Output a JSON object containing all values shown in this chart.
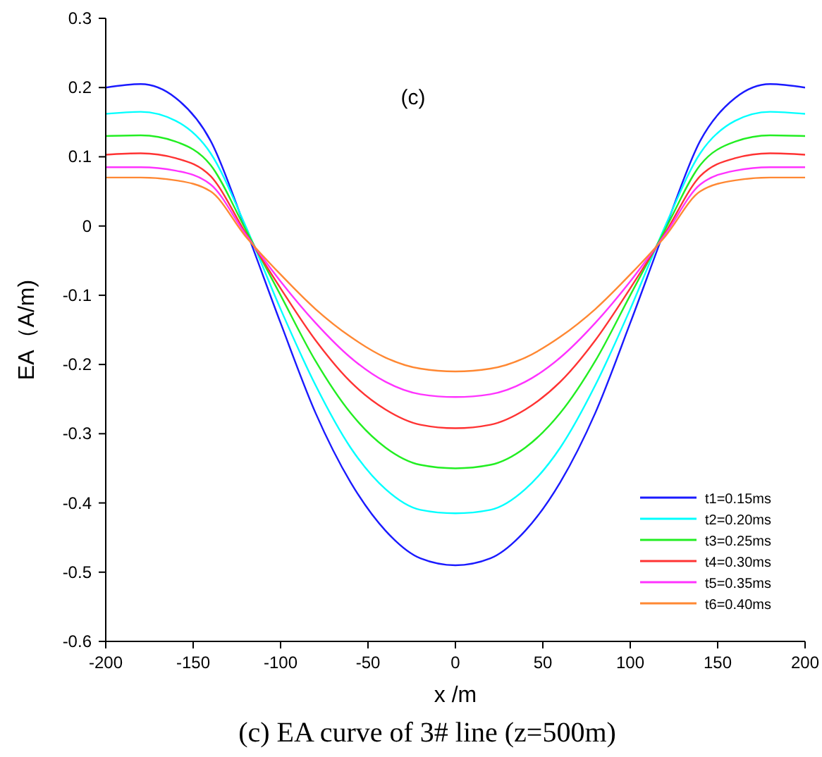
{
  "chart_data": {
    "type": "line",
    "title": "(c) EA curve of 3# line (z=500m)",
    "xlabel": "x /m",
    "ylabel": "EA（A/m)",
    "annotations": [
      "(c)"
    ],
    "x": [
      -200,
      -180,
      -160,
      -140,
      -120,
      -100,
      -80,
      -60,
      -40,
      -20,
      0,
      20,
      40,
      60,
      80,
      100,
      120,
      140,
      160,
      180,
      200
    ],
    "series": [
      {
        "name": "t1=0.15ms",
        "color": "#1a1aff",
        "values": [
          0.2,
          0.205,
          0.185,
          0.123,
          -0.004,
          -0.14,
          -0.27,
          -0.37,
          -0.44,
          -0.48,
          -0.49,
          -0.48,
          -0.44,
          -0.37,
          -0.27,
          -0.14,
          -0.004,
          0.123,
          0.185,
          0.205,
          0.2
        ]
      },
      {
        "name": "t2=0.20ms",
        "color": "#00ffff",
        "values": [
          0.162,
          0.165,
          0.152,
          0.105,
          0,
          -0.12,
          -0.23,
          -0.32,
          -0.38,
          -0.41,
          -0.415,
          -0.41,
          -0.38,
          -0.32,
          -0.23,
          -0.12,
          0,
          0.105,
          0.152,
          0.165,
          0.162
        ]
      },
      {
        "name": "t3=0.25ms",
        "color": "#22ee22",
        "values": [
          0.13,
          0.131,
          0.122,
          0.088,
          -0.005,
          -0.1,
          -0.195,
          -0.27,
          -0.32,
          -0.345,
          -0.35,
          -0.345,
          -0.32,
          -0.27,
          -0.195,
          -0.1,
          -0.005,
          0.088,
          0.122,
          0.131,
          0.13
        ]
      },
      {
        "name": "t4=0.30ms",
        "color": "#ff3333",
        "values": [
          0.103,
          0.105,
          0.098,
          0.072,
          -0.01,
          -0.09,
          -0.165,
          -0.225,
          -0.265,
          -0.287,
          -0.292,
          -0.287,
          -0.265,
          -0.225,
          -0.165,
          -0.09,
          -0.01,
          0.072,
          0.098,
          0.105,
          0.103
        ]
      },
      {
        "name": "t5=0.35ms",
        "color": "#ff33ff",
        "values": [
          0.085,
          0.085,
          0.08,
          0.06,
          -0.012,
          -0.08,
          -0.14,
          -0.19,
          -0.225,
          -0.243,
          -0.247,
          -0.243,
          -0.225,
          -0.19,
          -0.14,
          -0.08,
          -0.012,
          0.06,
          0.08,
          0.085,
          0.085
        ]
      },
      {
        "name": "t6=0.40ms",
        "color": "#ff8833",
        "values": [
          0.07,
          0.07,
          0.066,
          0.05,
          -0.015,
          -0.07,
          -0.12,
          -0.16,
          -0.19,
          -0.206,
          -0.21,
          -0.206,
          -0.19,
          -0.16,
          -0.12,
          -0.07,
          -0.015,
          0.05,
          0.066,
          0.07,
          0.07
        ]
      }
    ],
    "xlim": [
      -200,
      200
    ],
    "xticks": [
      -200,
      -150,
      -100,
      -50,
      0,
      50,
      100,
      150,
      200
    ],
    "ylim": [
      -0.6,
      0.3
    ],
    "yticks": [
      -0.6,
      -0.5,
      -0.4,
      -0.3,
      -0.2,
      -0.1,
      0,
      0.1,
      0.2,
      0.3
    ],
    "grid": false,
    "legend": "bottom right",
    "line_style": "solid"
  }
}
